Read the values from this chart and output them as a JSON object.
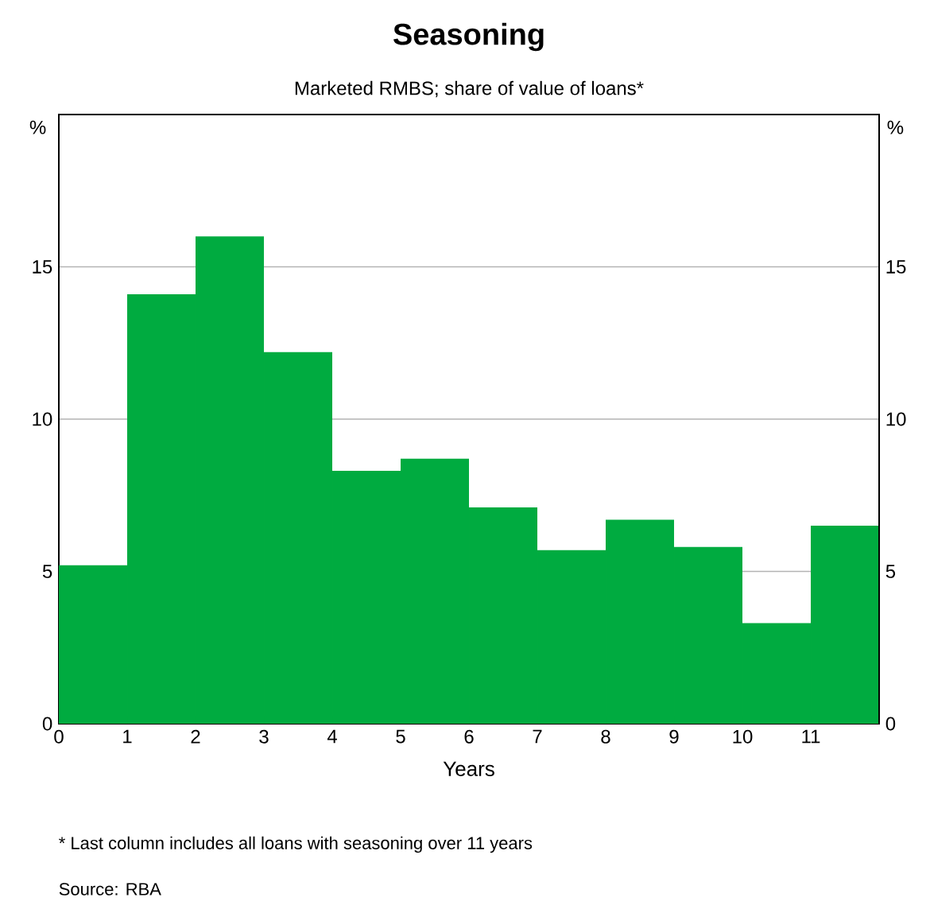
{
  "chart_data": {
    "type": "histogram",
    "title": "Seasoning",
    "subtitle": "Marketed RMBS; share of value of loans*",
    "xlabel": "Years",
    "ylabel": "%",
    "y2label": "%",
    "bins": [
      0,
      1,
      2,
      3,
      4,
      5,
      6,
      7,
      8,
      9,
      10,
      11,
      12
    ],
    "values": [
      5.2,
      14.1,
      16.0,
      12.2,
      8.3,
      8.7,
      7.1,
      5.7,
      6.7,
      5.8,
      3.3,
      6.5
    ],
    "color": "#00ab40",
    "xlim": [
      0,
      12
    ],
    "xticks": [
      0,
      1,
      2,
      3,
      4,
      5,
      6,
      7,
      8,
      9,
      10,
      11
    ],
    "ylim": [
      0,
      20
    ],
    "yticks": [
      0,
      5,
      10,
      15
    ],
    "y2lim": [
      0,
      20
    ],
    "y2ticks": [
      0,
      5,
      10,
      15
    ],
    "grid": "y",
    "annotations": [
      "*     Last column includes all loans with seasoning over 11 years",
      "Source:  RBA"
    ]
  }
}
